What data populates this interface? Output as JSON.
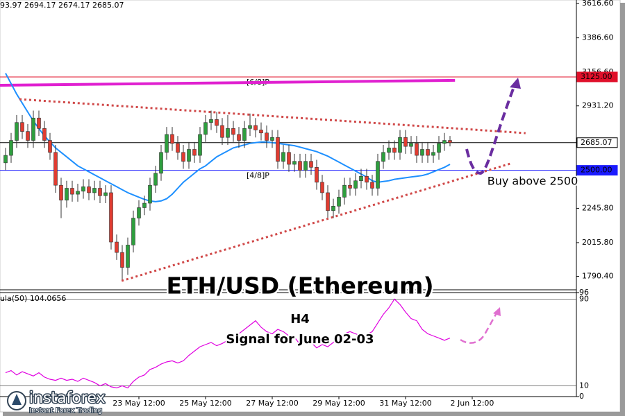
{
  "chart_data": [
    {
      "type": "candlestick",
      "header": "93.97 2694.17 2674.17 2685.07",
      "title": "ETH/USD (Ethereum)",
      "subtitle": "H4",
      "caption": "Signal for June 02-03",
      "annotation": "Buy above 2500",
      "xlim": [
        -1,
        102.75
      ],
      "ylim": [
        1700,
        3640
      ],
      "xticks": [
        {
          "value": 24,
          "label": "23 May 12:00"
        },
        {
          "value": 36,
          "label": "25 May 12:00"
        },
        {
          "value": 48,
          "label": "27 May 12:00"
        },
        {
          "value": 60,
          "label": "29 May 12:00"
        },
        {
          "value": 72,
          "label": "31 May 12:00"
        },
        {
          "value": 84,
          "label": "2 Jun 12:00"
        }
      ],
      "yticks": [
        {
          "value": 3616.6,
          "label": "3616.60"
        },
        {
          "value": 3386.6,
          "label": "3386.60"
        },
        {
          "value": 3156.6,
          "label": "3156.60"
        },
        {
          "value": 2931.2,
          "label": "2931.20"
        },
        {
          "value": 2245.8,
          "label": "2245.80"
        },
        {
          "value": 2015.8,
          "label": "2015.80"
        },
        {
          "value": 1790.4,
          "label": "1790.40"
        }
      ],
      "up_color": "#2e9e3e",
      "down_color": "#e03c31",
      "open": [
        2550,
        2600,
        2700,
        2820,
        2760,
        2700,
        2850,
        2780,
        2700,
        2620,
        2400,
        2300,
        2380,
        2340,
        2360,
        2390,
        2350,
        2380,
        2330,
        2350,
        2020,
        1950,
        1850,
        2000,
        2180,
        2250,
        2280,
        2400,
        2480,
        2620,
        2740,
        2680,
        2620,
        2560,
        2640,
        2600,
        2740,
        2820,
        2840,
        2800,
        2720,
        2780,
        2740,
        2700,
        2780,
        2800,
        2770,
        2750,
        2700,
        2720,
        2560,
        2620,
        2540,
        2560,
        2500,
        2560,
        2520,
        2420,
        2350,
        2230,
        2260,
        2320,
        2400,
        2380,
        2430,
        2460,
        2420,
        2380,
        2560,
        2620,
        2650,
        2620,
        2720,
        2660,
        2680,
        2600,
        2640,
        2600,
        2620,
        2680,
        2700
      ],
      "high": [
        2650,
        2750,
        2870,
        2870,
        2810,
        2900,
        2900,
        2830,
        2750,
        2670,
        2450,
        2430,
        2430,
        2410,
        2440,
        2440,
        2430,
        2430,
        2400,
        2400,
        2070,
        2000,
        2050,
        2230,
        2300,
        2330,
        2450,
        2530,
        2670,
        2790,
        2790,
        2730,
        2670,
        2690,
        2690,
        2790,
        2870,
        2900,
        2890,
        2850,
        2870,
        2830,
        2790,
        2830,
        2880,
        2850,
        2820,
        2800,
        2770,
        2770,
        2670,
        2670,
        2610,
        2610,
        2610,
        2610,
        2570,
        2470,
        2400,
        2310,
        2370,
        2450,
        2450,
        2480,
        2510,
        2510,
        2470,
        2610,
        2670,
        2700,
        2700,
        2770,
        2770,
        2730,
        2730,
        2690,
        2690,
        2670,
        2730,
        2750,
        2730
      ],
      "low": [
        2500,
        2550,
        2650,
        2710,
        2650,
        2650,
        2730,
        2650,
        2570,
        2350,
        2180,
        2250,
        2290,
        2290,
        2310,
        2300,
        2300,
        2280,
        2280,
        1970,
        1900,
        1760,
        1800,
        1950,
        2130,
        2200,
        2230,
        2350,
        2430,
        2570,
        2630,
        2570,
        2510,
        2510,
        2550,
        2550,
        2690,
        2770,
        2750,
        2670,
        2670,
        2690,
        2650,
        2650,
        2730,
        2720,
        2700,
        2650,
        2650,
        2510,
        2510,
        2490,
        2490,
        2450,
        2450,
        2470,
        2370,
        2300,
        2180,
        2180,
        2210,
        2270,
        2330,
        2330,
        2380,
        2370,
        2330,
        2330,
        2510,
        2570,
        2570,
        2570,
        2610,
        2610,
        2550,
        2550,
        2550,
        2550,
        2570,
        2630,
        2660
      ],
      "close": [
        2600,
        2700,
        2820,
        2760,
        2700,
        2850,
        2780,
        2700,
        2620,
        2400,
        2300,
        2380,
        2340,
        2360,
        2390,
        2350,
        2380,
        2330,
        2350,
        2020,
        1950,
        1850,
        2000,
        2180,
        2250,
        2280,
        2400,
        2480,
        2620,
        2740,
        2680,
        2620,
        2560,
        2640,
        2600,
        2740,
        2820,
        2840,
        2800,
        2720,
        2780,
        2740,
        2700,
        2780,
        2800,
        2770,
        2750,
        2700,
        2720,
        2560,
        2620,
        2540,
        2560,
        2500,
        2560,
        2520,
        2420,
        2350,
        2230,
        2260,
        2320,
        2400,
        2380,
        2430,
        2460,
        2420,
        2380,
        2560,
        2620,
        2650,
        2620,
        2720,
        2660,
        2680,
        2600,
        2640,
        2600,
        2620,
        2680,
        2700,
        2685
      ],
      "series": [
        {
          "color": "#1e90ff",
          "values": [
            3150,
            3080,
            3010,
            2950,
            2890,
            2830,
            2780,
            2730,
            2690,
            2650,
            2620,
            2590,
            2560,
            2530,
            2510,
            2490,
            2470,
            2450,
            2430,
            2410,
            2390,
            2370,
            2350,
            2335,
            2320,
            2305,
            2295,
            2290,
            2295,
            2310,
            2340,
            2380,
            2420,
            2450,
            2480,
            2510,
            2530,
            2560,
            2590,
            2610,
            2630,
            2650,
            2660,
            2670,
            2680,
            2685,
            2690,
            2690,
            2685,
            2680,
            2675,
            2670,
            2665,
            2655,
            2645,
            2635,
            2625,
            2610,
            2595,
            2575,
            2555,
            2535,
            2515,
            2495,
            2475,
            2455,
            2430,
            2420,
            2425,
            2430,
            2440,
            2445,
            2450,
            2455,
            2460,
            2465,
            2475,
            2490,
            2505,
            2520,
            2540
          ]
        }
      ],
      "levels": [
        {
          "value": 3125,
          "label": "3125.00",
          "note": "[6/8]P",
          "color": "#e0102a",
          "text_color": "#ffffff"
        },
        {
          "value": 2685.07,
          "label": "2685.07",
          "color": "#000000",
          "text_color": "#000000"
        },
        {
          "value": 2500,
          "label": "2500.00",
          "note": "[4/8]P",
          "color": "#1a1aff",
          "text_color": "#ffffff"
        }
      ],
      "bands": [
        {
          "color": "#e020d0",
          "x": [
            -1,
            80.9
          ],
          "values": [
            3069,
            3102
          ]
        }
      ],
      "trendlines": [
        {
          "color": "#d04848",
          "x": [
            2.5,
            93.6
          ],
          "values": [
            2976,
            2749
          ]
        },
        {
          "color": "#d04848",
          "x": [
            20.9,
            90.9
          ],
          "values": [
            1760,
            2545
          ]
        }
      ]
    },
    {
      "type": "line",
      "label": "ula(50) 104.0656",
      "ylim": [
        0,
        96
      ],
      "yticks": [
        96,
        90,
        10,
        0
      ],
      "series": [
        {
          "color": "#e000e0",
          "values": [
            22,
            24,
            20,
            23,
            21,
            19,
            22,
            18,
            16,
            15,
            17,
            15,
            16,
            14,
            17,
            15,
            13,
            10,
            12,
            9,
            8,
            10,
            8,
            14,
            18,
            20,
            25,
            27,
            30,
            32,
            33,
            31,
            33,
            38,
            42,
            46,
            48,
            50,
            47,
            49,
            52,
            55,
            58,
            62,
            66,
            70,
            64,
            60,
            58,
            62,
            60,
            56,
            55,
            48,
            54,
            50,
            45,
            48,
            46,
            50,
            55,
            58,
            60,
            58,
            56,
            57,
            60,
            68,
            76,
            82,
            90,
            85,
            78,
            72,
            70,
            62,
            58,
            56,
            54,
            52,
            54
          ]
        }
      ]
    }
  ],
  "logo": {
    "name": "instaforex",
    "tagline": "Instant Forex Trading"
  }
}
